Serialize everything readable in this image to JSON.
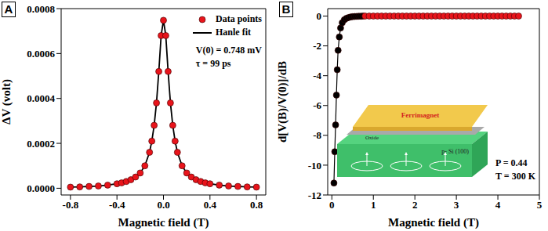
{
  "chart_data": [
    {
      "type": "scatter",
      "panel": "A",
      "x_label": "Magnetic field (T)",
      "y_label": "ΔV (volt)",
      "annotations": [
        "V(0) = 0.748 mV",
        "τ = 99 ps"
      ],
      "legend": "upper right",
      "xlim": [
        -0.88,
        0.88
      ],
      "xticks": [
        {
          "value": -0.8,
          "label": "-0.8"
        },
        {
          "value": -0.4,
          "label": "-0.4"
        },
        {
          "value": 0,
          "label": "0.0"
        },
        {
          "value": 0.4,
          "label": "0.4"
        },
        {
          "value": 0.8,
          "label": "0.8"
        }
      ],
      "ylim": [
        -3e-05,
        0.0008
      ],
      "yticks": [
        {
          "value": 0,
          "label": "0.0000"
        },
        {
          "value": 0.0002,
          "label": "0.0002"
        },
        {
          "value": 0.0004,
          "label": "0.0004"
        },
        {
          "value": 0.0006,
          "label": "0.0006"
        },
        {
          "value": 0.0008,
          "label": "0.0008"
        }
      ],
      "series": [
        {
          "name": "Data points",
          "color": "#e8141b",
          "marker": "circle",
          "x": [
            -0.8,
            -0.72,
            -0.64,
            -0.56,
            -0.48,
            -0.4,
            -0.36,
            -0.32,
            -0.28,
            -0.24,
            -0.2,
            -0.16,
            -0.12,
            -0.1,
            -0.08,
            -0.06,
            -0.04,
            -0.02,
            0,
            0.02,
            0.04,
            0.06,
            0.08,
            0.1,
            0.12,
            0.16,
            0.2,
            0.24,
            0.28,
            0.32,
            0.36,
            0.4,
            0.48,
            0.56,
            0.64,
            0.72,
            0.8
          ],
          "values": [
            5e-06,
            6e-06,
            8e-06,
            1e-05,
            1.4e-05,
            2e-05,
            2.4e-05,
            3e-05,
            3.8e-05,
            5e-05,
            6.8e-05,
            0.0001,
            0.00016,
            0.00021,
            0.00028,
            0.00038,
            0.00052,
            0.00068,
            0.000748,
            0.00068,
            0.00052,
            0.00038,
            0.00028,
            0.00021,
            0.00016,
            0.0001,
            6.8e-05,
            5e-05,
            3.8e-05,
            3e-05,
            2.4e-05,
            2e-05,
            1.4e-05,
            1e-05,
            8e-06,
            6e-06,
            5e-06
          ]
        },
        {
          "name": "Hanle fit",
          "color": "#000000",
          "line_style": "solid",
          "x": [
            -0.8,
            -0.72,
            -0.64,
            -0.56,
            -0.48,
            -0.4,
            -0.36,
            -0.32,
            -0.28,
            -0.24,
            -0.2,
            -0.16,
            -0.12,
            -0.1,
            -0.08,
            -0.06,
            -0.04,
            -0.02,
            0,
            0.02,
            0.04,
            0.06,
            0.08,
            0.1,
            0.12,
            0.16,
            0.2,
            0.24,
            0.28,
            0.32,
            0.36,
            0.4,
            0.48,
            0.56,
            0.64,
            0.72,
            0.8
          ],
          "values": [
            5e-06,
            6e-06,
            8e-06,
            1e-05,
            1.4e-05,
            2e-05,
            2.4e-05,
            3e-05,
            3.8e-05,
            5e-05,
            6.8e-05,
            0.0001,
            0.00016,
            0.00021,
            0.00028,
            0.00038,
            0.00052,
            0.00068,
            0.000748,
            0.00068,
            0.00052,
            0.00038,
            0.00028,
            0.00021,
            0.00016,
            0.0001,
            6.8e-05,
            5e-05,
            3.8e-05,
            3e-05,
            2.4e-05,
            2e-05,
            1.4e-05,
            1e-05,
            8e-06,
            6e-06,
            5e-06
          ]
        }
      ]
    },
    {
      "type": "scatter",
      "panel": "B",
      "x_label": "Magnetic field (T)",
      "y_label": "d[V(B)/V(0)]/dB",
      "annotations": [
        "P = 0.44",
        "T = 300 K"
      ],
      "line_style": "solid",
      "inset": {
        "top_layer": "Ferrimagnet",
        "middle_layer": "Oxide",
        "substrate": "p- Si (100)"
      },
      "xlim": [
        -0.1,
        5
      ],
      "xticks": [
        0,
        1,
        2,
        3,
        4,
        5
      ],
      "ylim": [
        -12,
        0.5
      ],
      "yticks": [
        -12,
        -10,
        -8,
        -6,
        -4,
        -2,
        0
      ],
      "series": [
        {
          "color": "#000000",
          "marker": "circle",
          "x": [
            0.05,
            0.07,
            0.09,
            0.11,
            0.13,
            0.15,
            0.18,
            0.21,
            0.25,
            0.3,
            0.35,
            0.4,
            0.45,
            0.5,
            0.55,
            0.6,
            0.65,
            0.7,
            0.75
          ],
          "values": [
            -11.2,
            -9.1,
            -7.3,
            -5.3,
            -3.6,
            -2.3,
            -1.4,
            -0.8,
            -0.45,
            -0.25,
            -0.15,
            -0.1,
            -0.06,
            -0.04,
            -0.03,
            -0.02,
            -0.01,
            -0.01,
            0
          ]
        },
        {
          "color": "#e8141b",
          "marker": "circle",
          "x": [
            0.8,
            0.9,
            1,
            1.1,
            1.2,
            1.3,
            1.4,
            1.5,
            1.6,
            1.7,
            1.8,
            1.9,
            2,
            2.1,
            2.2,
            2.3,
            2.4,
            2.5,
            2.6,
            2.7,
            2.8,
            2.9,
            3,
            3.1,
            3.2,
            3.3,
            3.4,
            3.5,
            3.6,
            3.7,
            3.8,
            3.9,
            4,
            4.1,
            4.2,
            4.3,
            4.4,
            4.5
          ],
          "values": [
            0,
            0,
            0,
            0,
            0,
            0,
            0,
            0,
            0,
            0,
            0,
            0,
            0,
            0,
            0,
            0,
            0,
            0,
            0,
            0,
            0,
            0,
            0,
            0,
            0,
            0,
            0,
            0,
            0,
            0,
            0,
            0,
            0,
            0,
            0,
            0,
            0,
            0
          ]
        }
      ]
    }
  ]
}
